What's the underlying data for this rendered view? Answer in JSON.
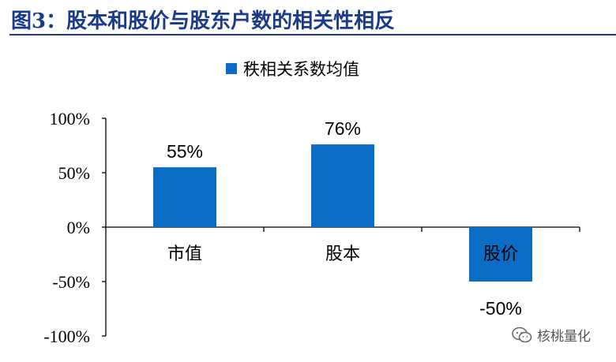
{
  "header": {
    "title": "图3：股本和股价与股东户数的相关性相反"
  },
  "watermark": {
    "text": "核桃量化",
    "icon": "wechat-icon"
  },
  "colors": {
    "title": "#1a3a8a",
    "bar": "#0a6cc4",
    "axis": "#000000"
  },
  "chart_data": {
    "type": "bar",
    "categories": [
      "市值",
      "股本",
      "股价"
    ],
    "series": [
      {
        "name": "秩相关系数均值",
        "values": [
          55,
          76,
          -50
        ]
      }
    ],
    "data_labels": [
      "55%",
      "76%",
      "-50%"
    ],
    "yticks": [
      "100%",
      "50%",
      "0%",
      "-50%",
      "-100%"
    ],
    "ylim": [
      -100,
      100
    ],
    "legend": "top",
    "grid": false
  }
}
